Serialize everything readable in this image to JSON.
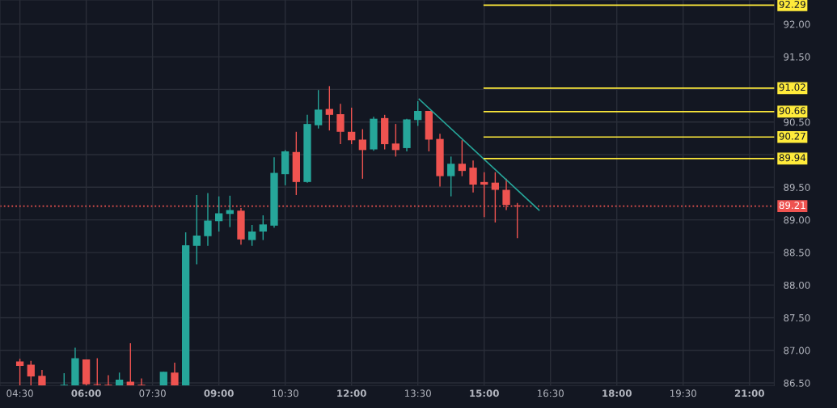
{
  "chart_data": {
    "type": "candlestick",
    "x": [
      4.5,
      4.75,
      5.0,
      5.5,
      5.75,
      6.0,
      6.25,
      6.5,
      6.75,
      7.0,
      7.25,
      7.75,
      8.0,
      8.25,
      8.5,
      8.75,
      9.0,
      9.25,
      9.5,
      9.75,
      10.0,
      10.25,
      10.5,
      10.75,
      11.0,
      11.25,
      11.5,
      11.75,
      12.0,
      12.25,
      12.5,
      12.75,
      13.0,
      13.25,
      13.5,
      13.75,
      14.0,
      14.25,
      14.5,
      14.75,
      15.0,
      15.25,
      15.5,
      15.75
    ],
    "ohlc": [
      [
        86.83,
        86.87,
        86.46,
        86.76
      ],
      [
        86.78,
        86.84,
        86.46,
        86.6
      ],
      [
        86.61,
        86.7,
        86.46,
        86.46
      ],
      [
        86.46,
        86.65,
        86.46,
        86.46
      ],
      [
        86.46,
        87.04,
        86.46,
        86.88
      ],
      [
        86.86,
        86.86,
        86.46,
        86.48
      ],
      [
        86.48,
        86.88,
        86.46,
        86.47
      ],
      [
        86.46,
        86.62,
        86.46,
        86.46
      ],
      [
        86.46,
        86.66,
        86.46,
        86.55
      ],
      [
        86.52,
        87.11,
        86.46,
        86.46
      ],
      [
        86.46,
        86.57,
        86.46,
        86.46
      ],
      [
        86.46,
        86.67,
        86.46,
        86.67
      ],
      [
        86.66,
        86.81,
        86.46,
        86.46
      ],
      [
        86.46,
        88.81,
        86.46,
        88.61
      ],
      [
        88.6,
        89.38,
        88.32,
        88.76
      ],
      [
        88.75,
        89.41,
        88.6,
        88.99
      ],
      [
        88.98,
        89.36,
        88.82,
        89.1
      ],
      [
        89.09,
        89.37,
        88.89,
        89.15
      ],
      [
        89.14,
        89.18,
        88.62,
        88.7
      ],
      [
        88.69,
        88.92,
        88.6,
        88.82
      ],
      [
        88.82,
        89.07,
        88.69,
        88.93
      ],
      [
        88.91,
        89.96,
        88.88,
        89.72
      ],
      [
        89.7,
        90.07,
        89.53,
        90.05
      ],
      [
        90.04,
        90.35,
        89.38,
        89.58
      ],
      [
        89.58,
        90.61,
        89.57,
        90.47
      ],
      [
        90.45,
        90.99,
        90.4,
        90.69
      ],
      [
        90.7,
        91.05,
        90.37,
        90.61
      ],
      [
        90.62,
        90.78,
        90.16,
        90.35
      ],
      [
        90.35,
        90.72,
        90.16,
        90.22
      ],
      [
        90.23,
        90.39,
        89.63,
        90.07
      ],
      [
        90.08,
        90.58,
        90.06,
        90.55
      ],
      [
        90.56,
        90.61,
        90.08,
        90.16
      ],
      [
        90.17,
        90.47,
        89.97,
        90.07
      ],
      [
        90.1,
        90.55,
        90.05,
        90.54
      ],
      [
        90.53,
        90.82,
        90.44,
        90.67
      ],
      [
        90.67,
        90.67,
        90.05,
        90.23
      ],
      [
        90.24,
        90.32,
        89.51,
        89.67
      ],
      [
        89.67,
        89.97,
        89.36,
        89.86
      ],
      [
        89.86,
        90.22,
        89.67,
        89.75
      ],
      [
        89.8,
        89.91,
        89.42,
        89.54
      ],
      [
        89.58,
        89.73,
        89.04,
        89.54
      ],
      [
        89.57,
        89.73,
        88.96,
        89.46
      ],
      [
        89.46,
        89.63,
        89.15,
        89.23
      ],
      [
        89.22,
        89.26,
        88.72,
        89.21
      ]
    ],
    "colors": [
      "#ef5350",
      "#ef5350",
      "#ef5350",
      "#26a69a",
      "#26a69a",
      "#ef5350",
      "#ef5350",
      "#ef5350",
      "#26a69a",
      "#ef5350",
      "#ef5350",
      "#26a69a",
      "#ef5350",
      "#26a69a",
      "#26a69a",
      "#26a69a",
      "#26a69a",
      "#26a69a",
      "#ef5350",
      "#26a69a",
      "#26a69a",
      "#26a69a",
      "#26a69a",
      "#ef5350",
      "#26a69a",
      "#26a69a",
      "#ef5350",
      "#ef5350",
      "#ef5350",
      "#ef5350",
      "#26a69a",
      "#ef5350",
      "#ef5350",
      "#26a69a",
      "#26a69a",
      "#ef5350",
      "#ef5350",
      "#26a69a",
      "#ef5350",
      "#ef5350",
      "#ef5350",
      "#ef5350",
      "#ef5350",
      "#ef5350"
    ],
    "series": [
      {
        "type": "line",
        "x": [
          13.53,
          16.24
        ],
        "values": [
          90.85,
          89.15
        ],
        "color": "#26a69a"
      },
      {
        "type": "line",
        "x": [
          15.0,
          21.56
        ],
        "values": [
          92.29,
          92.29
        ],
        "color": "#ffeb3b",
        "value_labels": [
          null,
          "92.29"
        ]
      },
      {
        "type": "line",
        "x": [
          15.0,
          21.56
        ],
        "values": [
          91.02,
          91.02
        ],
        "color": "#ffeb3b",
        "value_labels": [
          null,
          "91.02"
        ]
      },
      {
        "type": "line",
        "x": [
          15.0,
          21.56
        ],
        "values": [
          90.66,
          90.66
        ],
        "color": "#ffeb3b",
        "value_labels": [
          null,
          "90.66"
        ]
      },
      {
        "type": "line",
        "x": [
          15.0,
          21.56
        ],
        "values": [
          90.27,
          90.27
        ],
        "color": "#ffeb3b",
        "value_labels": [
          null,
          "90.27"
        ]
      },
      {
        "type": "line",
        "x": [
          15.0,
          21.56
        ],
        "values": [
          89.94,
          89.94
        ],
        "color": "#ffeb3b",
        "value_labels": [
          null,
          "89.94"
        ]
      }
    ],
    "ref_lines": [
      {
        "axis": "y",
        "value": 89.21,
        "label": "89.21",
        "color": "#ef5350",
        "line_style": "dotted"
      }
    ],
    "xlim": [
      4.05,
      21.56
    ],
    "ylim": [
      86.46,
      92.37
    ],
    "xticks": [
      {
        "value": 4.5,
        "label": "04:30"
      },
      {
        "value": 6,
        "label": "06:00"
      },
      {
        "value": 7.5,
        "label": "07:30"
      },
      {
        "value": 9,
        "label": "09:00"
      },
      {
        "value": 10.5,
        "label": "10:30"
      },
      {
        "value": 12,
        "label": "12:00"
      },
      {
        "value": 13.5,
        "label": "13:30"
      },
      {
        "value": 15,
        "label": "15:00"
      },
      {
        "value": 16.5,
        "label": "16:30"
      },
      {
        "value": 18,
        "label": "18:00"
      },
      {
        "value": 19.5,
        "label": "19:30"
      },
      {
        "value": 21,
        "label": "21:00"
      }
    ],
    "yticks": [
      {
        "value": 86.5,
        "label": "86.50"
      },
      {
        "value": 87,
        "label": "87.00"
      },
      {
        "value": 87.5,
        "label": "87.50"
      },
      {
        "value": 88,
        "label": "88.00"
      },
      {
        "value": 88.5,
        "label": "88.50"
      },
      {
        "value": 89,
        "label": "89.00"
      },
      {
        "value": 89.5,
        "label": "89.50"
      },
      {
        "value": 90,
        "label": null
      },
      {
        "value": 90.5,
        "label": "90.50"
      },
      {
        "value": 91,
        "label": null
      },
      {
        "value": 91.5,
        "label": "91.50"
      },
      {
        "value": 92,
        "label": "92.00"
      }
    ],
    "grid": true
  }
}
